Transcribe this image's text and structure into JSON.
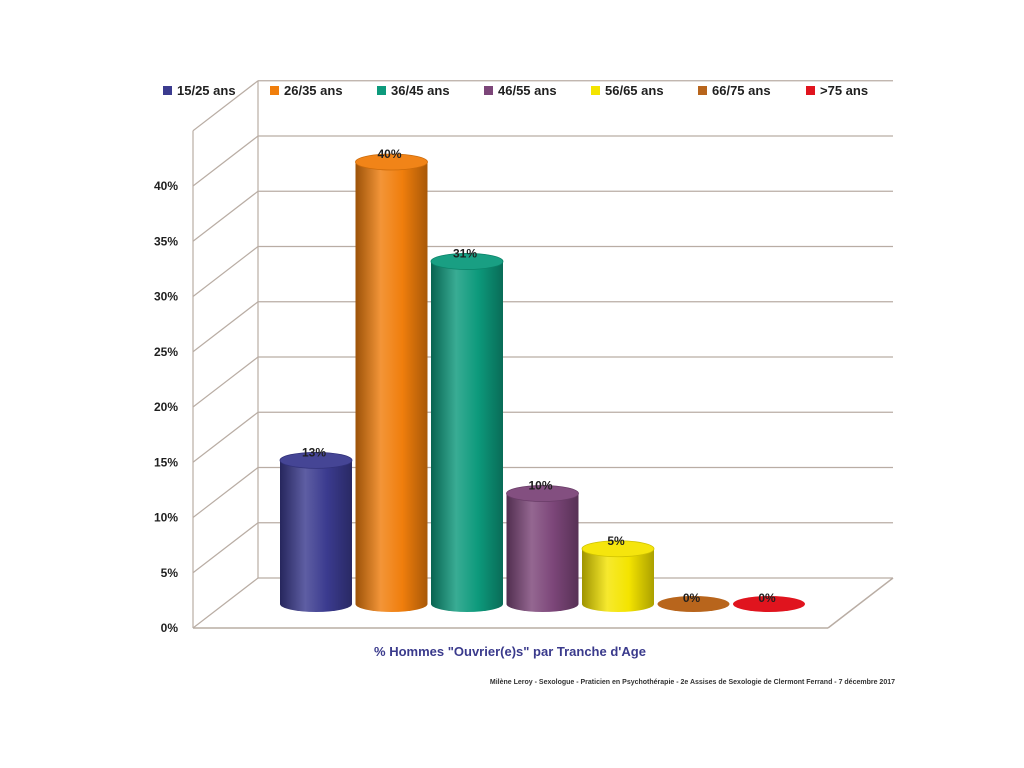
{
  "chart_data": {
    "type": "bar",
    "style": "3d-cylinder",
    "categories": [
      "15/25 ans",
      "26/35 ans",
      "36/45 ans",
      "46/55 ans",
      "56/65 ans",
      "66/75 ans",
      ">75 ans"
    ],
    "series": [
      {
        "values": [
          13,
          40,
          31,
          10,
          5,
          0,
          0
        ]
      }
    ],
    "data_labels": [
      "13%",
      "40%",
      "31%",
      "10%",
      "5%",
      "0%",
      "0%"
    ],
    "colors": [
      "#3b3b8f",
      "#f07e0c",
      "#0d9a7c",
      "#7c4679",
      "#f4e400",
      "#b8651c",
      "#e0141e"
    ],
    "legend": {
      "position": "top",
      "entries": [
        "15/25 ans",
        "26/35 ans",
        "36/45 ans",
        "46/55 ans",
        "56/65 ans",
        "66/75 ans",
        ">75 ans"
      ]
    },
    "yticks": [
      "0%",
      "5%",
      "10%",
      "15%",
      "20%",
      "25%",
      "30%",
      "35%",
      "40%"
    ],
    "ylim": [
      0,
      45
    ],
    "grid": true,
    "xlabel": "% Hommes \"Ouvrier(e)s\" par Tranche d'Age",
    "ylabel": ""
  },
  "credit": "Milène Leroy - Sexologue - Praticien en Psychothérapie - 2e Assises de Sexologie de Clermont Ferrand - 7 décembre 2017"
}
